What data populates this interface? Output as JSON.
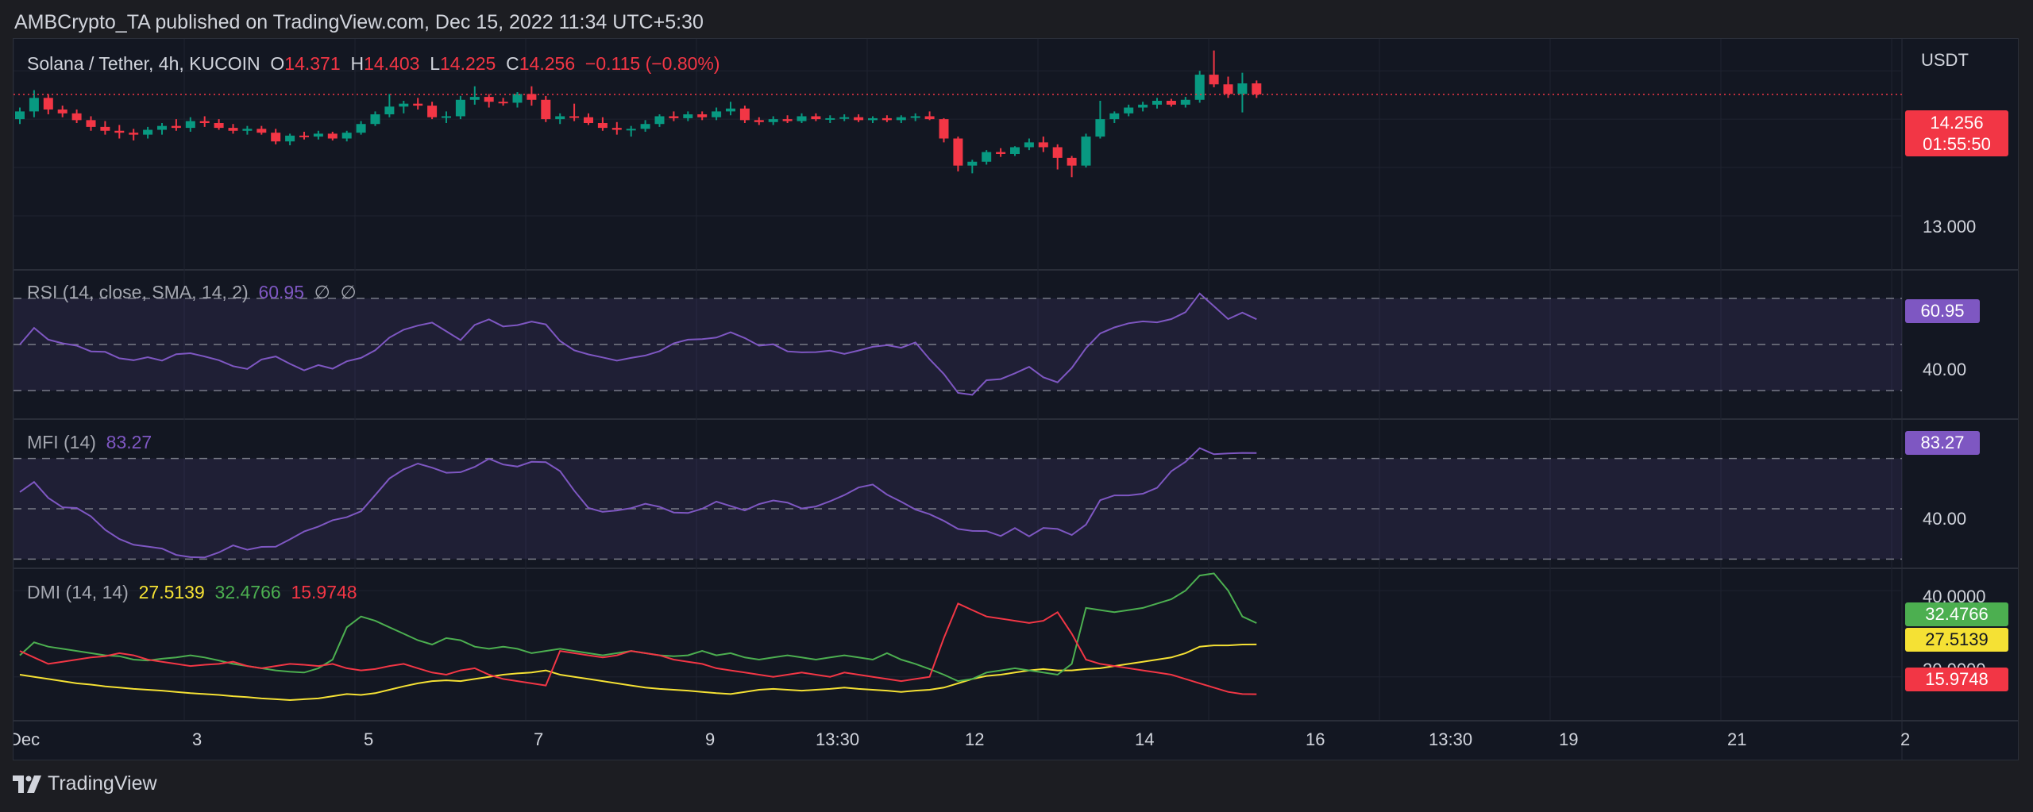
{
  "header": {
    "published": "AMBCrypto_TA published on TradingView.com, Dec 15, 2022 11:34 UTC+5:30"
  },
  "price_legend": {
    "symbol": "Solana / Tether, 4h, KUCOIN",
    "o_key": "O",
    "o": "14.371",
    "h_key": "H",
    "h": "14.403",
    "l_key": "L",
    "l": "14.225",
    "c_key": "C",
    "c": "14.256",
    "change": "−0.115 (−0.80%)"
  },
  "rsi_legend": {
    "name": "RSI (14, close, SMA, 14, 2)",
    "value": "60.95",
    "extra1": "∅",
    "extra2": "∅"
  },
  "mfi_legend": {
    "name": "MFI (14)",
    "value": "83.27"
  },
  "dmi_legend": {
    "name": "DMI (14, 14)",
    "adx": "27.5139",
    "plus_di": "32.4766",
    "minus_di": "15.9748"
  },
  "price_axis": {
    "currency": "USDT",
    "tick": "13.000",
    "last_price": "14.256",
    "countdown": "01:55:50"
  },
  "rsi_axis": {
    "tick": "40.00",
    "last": "60.95"
  },
  "mfi_axis": {
    "tick": "40.00",
    "last": "83.27"
  },
  "dmi_axis": {
    "tick_top": "40.0000",
    "tick_mid": "20.0000",
    "plus_di": "32.4766",
    "adx": "27.5139",
    "minus_di": "15.9748"
  },
  "time_axis": [
    "Dec",
    "3",
    "5",
    "7",
    "9",
    "13:30",
    "12",
    "14",
    "16",
    "13:30",
    "19",
    "21",
    "2"
  ],
  "footer": {
    "brand": "TradingView"
  },
  "colors": {
    "up": "#089981",
    "down": "#f23645",
    "rsi": "#7e57c2",
    "mfi": "#7e57c2",
    "adx": "#f5e134",
    "plus_di": "#4caf50",
    "minus_di": "#f23645",
    "band": "#7e57c2"
  },
  "chart_data": [
    {
      "type": "candlestick",
      "title": "Solana / Tether, 4h, KUCOIN",
      "ylabel": "USDT",
      "ylim": [
        12.45,
        14.83
      ],
      "x_ticks": [
        "Dec",
        "3",
        "5",
        "7",
        "9",
        "13:30",
        "12",
        "14",
        "16",
        "13:30",
        "19",
        "21",
        "2"
      ],
      "candles": [
        [
          14.0,
          14.12,
          13.95,
          14.08
        ],
        [
          14.08,
          14.3,
          14.02,
          14.22
        ],
        [
          14.22,
          14.26,
          14.05,
          14.1
        ],
        [
          14.1,
          14.14,
          14.02,
          14.06
        ],
        [
          14.06,
          14.1,
          13.96,
          13.99
        ],
        [
          13.99,
          14.03,
          13.88,
          13.92
        ],
        [
          13.92,
          13.98,
          13.84,
          13.88
        ],
        [
          13.88,
          13.94,
          13.8,
          13.86
        ],
        [
          13.86,
          13.9,
          13.78,
          13.84
        ],
        [
          13.84,
          13.92,
          13.8,
          13.89
        ],
        [
          13.89,
          13.96,
          13.84,
          13.93
        ],
        [
          13.93,
          14.0,
          13.88,
          13.91
        ],
        [
          13.91,
          14.02,
          13.87,
          13.98
        ],
        [
          13.98,
          14.03,
          13.92,
          13.96
        ],
        [
          13.96,
          14.0,
          13.89,
          13.91
        ],
        [
          13.91,
          13.95,
          13.85,
          13.88
        ],
        [
          13.88,
          13.93,
          13.84,
          13.9
        ],
        [
          13.9,
          13.93,
          13.84,
          13.86
        ],
        [
          13.86,
          13.9,
          13.74,
          13.77
        ],
        [
          13.77,
          13.85,
          13.73,
          13.83
        ],
        [
          13.83,
          13.87,
          13.79,
          13.82
        ],
        [
          13.82,
          13.88,
          13.79,
          13.85
        ],
        [
          13.85,
          13.87,
          13.78,
          13.8
        ],
        [
          13.8,
          13.88,
          13.77,
          13.86
        ],
        [
          13.86,
          13.98,
          13.84,
          13.95
        ],
        [
          13.95,
          14.08,
          13.93,
          14.05
        ],
        [
          14.05,
          14.26,
          14.02,
          14.13
        ],
        [
          14.13,
          14.19,
          14.06,
          14.16
        ],
        [
          14.16,
          14.22,
          14.1,
          14.14
        ],
        [
          14.14,
          14.18,
          14.0,
          14.02
        ],
        [
          14.02,
          14.08,
          13.96,
          14.03
        ],
        [
          14.03,
          14.24,
          14.0,
          14.2
        ],
        [
          14.2,
          14.34,
          14.15,
          14.23
        ],
        [
          14.23,
          14.26,
          14.12,
          14.18
        ],
        [
          14.18,
          14.22,
          14.14,
          14.17
        ],
        [
          14.17,
          14.28,
          14.12,
          14.26
        ],
        [
          14.26,
          14.34,
          14.14,
          14.2
        ],
        [
          14.2,
          14.24,
          13.97,
          14.0
        ],
        [
          14.0,
          14.06,
          13.95,
          14.03
        ],
        [
          14.03,
          14.16,
          13.98,
          14.02
        ],
        [
          14.02,
          14.06,
          13.94,
          13.96
        ],
        [
          13.96,
          14.02,
          13.88,
          13.91
        ],
        [
          13.91,
          13.97,
          13.84,
          13.89
        ],
        [
          13.89,
          13.93,
          13.82,
          13.9
        ],
        [
          13.9,
          13.99,
          13.87,
          13.95
        ],
        [
          13.95,
          14.05,
          13.92,
          14.03
        ],
        [
          14.03,
          14.08,
          13.98,
          14.01
        ],
        [
          14.01,
          14.08,
          13.98,
          14.05
        ],
        [
          14.05,
          14.08,
          13.99,
          14.02
        ],
        [
          14.02,
          14.12,
          13.99,
          14.08
        ],
        [
          14.08,
          14.18,
          14.04,
          14.11
        ],
        [
          14.11,
          14.14,
          13.96,
          13.99
        ],
        [
          13.99,
          14.02,
          13.94,
          13.97
        ],
        [
          13.97,
          14.03,
          13.94,
          14.0
        ],
        [
          14.0,
          14.04,
          13.96,
          13.98
        ],
        [
          13.98,
          14.06,
          13.96,
          14.03
        ],
        [
          14.03,
          14.06,
          13.98,
          14.0
        ],
        [
          14.0,
          14.04,
          13.96,
          14.01
        ],
        [
          14.01,
          14.05,
          13.98,
          14.02
        ],
        [
          14.02,
          14.05,
          13.97,
          13.99
        ],
        [
          13.99,
          14.03,
          13.96,
          14.01
        ],
        [
          14.01,
          14.04,
          13.97,
          13.99
        ],
        [
          13.99,
          14.04,
          13.96,
          14.02
        ],
        [
          14.02,
          14.06,
          13.98,
          14.03
        ],
        [
          14.03,
          14.08,
          13.99,
          14.0
        ],
        [
          14.0,
          14.01,
          13.76,
          13.8
        ],
        [
          13.8,
          13.82,
          13.46,
          13.52
        ],
        [
          13.52,
          13.58,
          13.44,
          13.56
        ],
        [
          13.56,
          13.68,
          13.53,
          13.66
        ],
        [
          13.66,
          13.7,
          13.61,
          13.64
        ],
        [
          13.64,
          13.72,
          13.62,
          13.71
        ],
        [
          13.71,
          13.8,
          13.68,
          13.76
        ],
        [
          13.76,
          13.82,
          13.66,
          13.71
        ],
        [
          13.71,
          13.74,
          13.48,
          13.6
        ],
        [
          13.6,
          13.62,
          13.4,
          13.52
        ],
        [
          13.52,
          13.85,
          13.5,
          13.82
        ],
        [
          13.82,
          14.19,
          13.8,
          14.0
        ],
        [
          14.0,
          14.08,
          13.96,
          14.06
        ],
        [
          14.06,
          14.15,
          14.03,
          14.12
        ],
        [
          14.12,
          14.18,
          14.08,
          14.15
        ],
        [
          14.15,
          14.22,
          14.11,
          14.19
        ],
        [
          14.19,
          14.21,
          14.13,
          14.15
        ],
        [
          14.15,
          14.23,
          14.12,
          14.2
        ],
        [
          14.2,
          14.5,
          14.17,
          14.46
        ],
        [
          14.46,
          14.71,
          14.33,
          14.36
        ],
        [
          14.36,
          14.44,
          14.22,
          14.26
        ],
        [
          14.26,
          14.48,
          14.07,
          14.37
        ],
        [
          14.37,
          14.4,
          14.22,
          14.256
        ]
      ]
    },
    {
      "type": "line",
      "title": "RSI (14, close, SMA, 14, 2)",
      "ylim": [
        18,
        82
      ],
      "levels": [
        70,
        50,
        30
      ],
      "series": [
        {
          "name": "RSI",
          "values": [
            50.0,
            57.2,
            52.1,
            50.5,
            49.5,
            47.0,
            46.8,
            44.0,
            43.2,
            44.5,
            43.0,
            45.8,
            46.2,
            44.8,
            43.2,
            40.6,
            39.4,
            43.5,
            44.8,
            41.6,
            38.8,
            41.1,
            39.5,
            42.7,
            44.2,
            47.5,
            53.0,
            56.4,
            58.2,
            59.5,
            55.7,
            51.9,
            58.5,
            60.9,
            57.8,
            58.4,
            59.9,
            58.7,
            51.5,
            47.5,
            45.7,
            44.4,
            43.0,
            44.2,
            45.2,
            47.1,
            50.5,
            52.1,
            52.3,
            53.0,
            55.3,
            52.8,
            49.5,
            50.1,
            47.0,
            46.6,
            46.7,
            47.3,
            45.9,
            47.4,
            49.0,
            49.7,
            48.6,
            50.9,
            43.6,
            37.2,
            29.0,
            28.2,
            34.5,
            35.0,
            37.5,
            40.3,
            35.8,
            33.6,
            39.8,
            48.4,
            54.8,
            57.4,
            59.2,
            60.0,
            59.6,
            61.0,
            64.0,
            72.1,
            66.6,
            61.0,
            63.8,
            60.95
          ]
        }
      ]
    },
    {
      "type": "line",
      "title": "MFI (14)",
      "ylim": [
        15,
        103
      ],
      "levels": [
        80,
        50,
        20
      ],
      "series": [
        {
          "name": "MFI",
          "values": [
            60.0,
            66.0,
            56.5,
            50.9,
            50.5,
            45.5,
            37.5,
            32.0,
            28.6,
            27.5,
            26.3,
            22.5,
            21.2,
            21.0,
            24.0,
            28.2,
            25.6,
            27.3,
            27.4,
            31.8,
            36.5,
            39.4,
            43.2,
            45.0,
            48.5,
            58.2,
            68.1,
            73.5,
            77.0,
            74.5,
            71.5,
            71.8,
            75.0,
            79.8,
            76.4,
            75.2,
            78.0,
            77.8,
            72.5,
            60.8,
            50.5,
            48.2,
            49.0,
            50.4,
            53.0,
            51.2,
            47.8,
            47.5,
            50.0,
            54.3,
            51.6,
            49.0,
            52.8,
            55.0,
            53.7,
            50.2,
            51.4,
            54.5,
            58.2,
            62.7,
            64.5,
            58.5,
            54.2,
            49.6,
            46.8,
            42.8,
            38.0,
            36.8,
            36.7,
            33.8,
            38.5,
            33.6,
            38.6,
            38.0,
            34.4,
            40.6,
            55.1,
            58.0,
            58.0,
            59.0,
            62.5,
            72.4,
            78.0,
            86.2,
            82.5,
            83.0,
            83.3,
            83.27
          ]
        }
      ]
    },
    {
      "type": "line",
      "title": "DMI (14, 14)",
      "ylim": [
        10,
        45
      ],
      "series": [
        {
          "name": "ADX",
          "values": [
            20.5,
            20.0,
            19.5,
            19.0,
            18.5,
            18.2,
            17.8,
            17.5,
            17.2,
            17.0,
            16.8,
            16.5,
            16.2,
            16.0,
            15.8,
            15.5,
            15.3,
            15.0,
            14.8,
            14.6,
            14.8,
            15.0,
            15.5,
            16.0,
            15.8,
            16.2,
            17.0,
            17.8,
            18.5,
            19.0,
            19.2,
            19.0,
            19.5,
            20.0,
            20.5,
            20.8,
            21.0,
            21.5,
            20.5,
            20.0,
            19.5,
            19.0,
            18.5,
            18.0,
            17.5,
            17.2,
            17.0,
            16.8,
            16.5,
            16.2,
            16.0,
            16.5,
            17.0,
            17.2,
            17.0,
            16.8,
            17.0,
            17.2,
            17.5,
            17.2,
            17.0,
            16.8,
            16.5,
            16.8,
            17.0,
            17.5,
            18.5,
            19.5,
            20.2,
            20.5,
            21.0,
            21.5,
            21.8,
            21.5,
            21.5,
            21.8,
            22.0,
            22.5,
            23.0,
            23.5,
            24.0,
            24.5,
            25.5,
            27.0,
            27.3,
            27.3,
            27.5,
            27.5139
          ]
        },
        {
          "name": "+DI",
          "values": [
            25.0,
            28.0,
            27.0,
            26.5,
            26.0,
            25.5,
            25.0,
            24.8,
            24.0,
            23.8,
            24.2,
            24.5,
            25.0,
            24.5,
            23.8,
            23.0,
            22.5,
            22.0,
            21.5,
            21.2,
            21.0,
            22.0,
            24.0,
            31.5,
            34.0,
            33.0,
            31.5,
            30.0,
            28.5,
            27.5,
            29.0,
            28.5,
            27.0,
            26.5,
            27.0,
            26.5,
            25.5,
            26.0,
            26.5,
            26.0,
            25.5,
            25.0,
            25.5,
            26.0,
            25.5,
            25.0,
            24.8,
            25.0,
            26.0,
            25.0,
            25.5,
            24.5,
            24.0,
            24.5,
            25.0,
            24.5,
            24.0,
            24.5,
            25.0,
            24.5,
            24.0,
            25.5,
            24.0,
            23.0,
            21.8,
            20.5,
            19.0,
            19.5,
            21.0,
            21.5,
            22.0,
            21.5,
            21.0,
            20.5,
            23.0,
            36.0,
            35.5,
            35.0,
            35.5,
            36.0,
            37.0,
            38.0,
            40.0,
            43.5,
            44.0,
            40.0,
            34.0,
            32.4766
          ]
        },
        {
          "name": "-DI",
          "values": [
            26.0,
            24.5,
            23.0,
            23.5,
            24.0,
            24.5,
            24.8,
            25.5,
            25.0,
            24.0,
            23.5,
            23.0,
            22.5,
            22.8,
            23.0,
            23.5,
            22.5,
            22.0,
            22.5,
            23.0,
            22.8,
            22.5,
            23.0,
            22.0,
            21.5,
            21.8,
            22.5,
            23.0,
            22.0,
            21.0,
            20.5,
            21.5,
            22.0,
            20.5,
            19.5,
            19.0,
            18.5,
            18.0,
            26.0,
            25.5,
            25.0,
            24.5,
            25.0,
            26.0,
            25.5,
            25.0,
            24.0,
            23.5,
            23.0,
            22.0,
            21.5,
            21.0,
            20.5,
            20.0,
            20.5,
            21.0,
            20.5,
            20.0,
            21.0,
            20.5,
            20.0,
            19.5,
            19.0,
            19.5,
            20.0,
            29.0,
            37.0,
            35.5,
            34.0,
            33.5,
            33.0,
            32.5,
            33.0,
            35.0,
            30.0,
            24.0,
            23.0,
            22.5,
            22.0,
            21.5,
            21.0,
            20.5,
            19.5,
            18.5,
            17.5,
            16.5,
            16.0,
            15.9748
          ]
        }
      ]
    }
  ]
}
